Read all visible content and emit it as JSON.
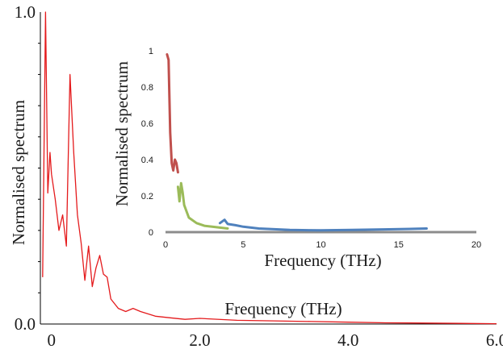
{
  "chart_data": [
    {
      "id": "main",
      "type": "line",
      "title": "",
      "xlabel": "Frequency (THz)",
      "ylabel": "Normalised spectrum",
      "xlim": [
        -0.15,
        6.0
      ],
      "ylim": [
        0,
        1.0
      ],
      "x_ticks": [
        0,
        2.0,
        4.0,
        6.0
      ],
      "x_tick_labels": [
        "0",
        "2.0",
        "4.0",
        "6.0"
      ],
      "y_tick_labels": [
        {
          "value": 0.0,
          "label": "0.0"
        },
        {
          "value": 1.0,
          "label": "1.0"
        }
      ],
      "grid": false,
      "series": [
        {
          "color": "#e41a1c",
          "x": [
            -0.12,
            -0.08,
            -0.05,
            -0.02,
            0.0,
            0.05,
            0.1,
            0.15,
            0.2,
            0.25,
            0.3,
            0.35,
            0.4,
            0.45,
            0.5,
            0.55,
            0.6,
            0.65,
            0.7,
            0.75,
            0.8,
            0.9,
            1.0,
            1.1,
            1.2,
            1.4,
            1.6,
            1.8,
            2.0,
            2.5,
            3.0,
            3.5,
            4.0,
            4.5,
            5.0,
            5.5,
            6.0
          ],
          "y": [
            0.15,
            1.0,
            0.42,
            0.55,
            0.48,
            0.4,
            0.3,
            0.35,
            0.25,
            0.8,
            0.55,
            0.35,
            0.26,
            0.14,
            0.25,
            0.12,
            0.18,
            0.22,
            0.16,
            0.15,
            0.08,
            0.05,
            0.04,
            0.05,
            0.04,
            0.025,
            0.02,
            0.015,
            0.018,
            0.012,
            0.01,
            0.008,
            0.006,
            0.004,
            0.003,
            0.002,
            0.001
          ]
        }
      ]
    },
    {
      "id": "inset",
      "type": "line",
      "title": "",
      "xlabel": "Frequency (THz)",
      "ylabel": "Normalised spectrum",
      "xlim": [
        0,
        20
      ],
      "ylim": [
        0,
        1
      ],
      "x_ticks": [
        0,
        5,
        10,
        15,
        20
      ],
      "x_tick_labels": [
        "0",
        "5",
        "10",
        "15",
        "20"
      ],
      "y_ticks": [
        0,
        0.2,
        0.4,
        0.6,
        0.8,
        1
      ],
      "y_tick_labels": [
        "0",
        "0.2",
        "0.4",
        "0.6",
        "0.8",
        "1"
      ],
      "grid": false,
      "series": [
        {
          "color": "#c0504d",
          "x": [
            0.1,
            0.2,
            0.3,
            0.4,
            0.5,
            0.6,
            0.7,
            0.8
          ],
          "y": [
            0.98,
            0.95,
            0.55,
            0.38,
            0.34,
            0.4,
            0.38,
            0.33
          ]
        },
        {
          "color": "#9bbb59",
          "x": [
            0.8,
            0.9,
            1.0,
            1.1,
            1.2,
            1.5,
            2.0,
            2.5,
            3.0,
            3.5,
            4.0
          ],
          "y": [
            0.25,
            0.17,
            0.27,
            0.22,
            0.15,
            0.08,
            0.05,
            0.035,
            0.03,
            0.025,
            0.02
          ]
        },
        {
          "color": "#4f81bd",
          "x": [
            3.5,
            3.8,
            4.0,
            4.5,
            5.0,
            6.0,
            8.0,
            10.0,
            12.0,
            14.0,
            16.0,
            16.8
          ],
          "y": [
            0.05,
            0.068,
            0.045,
            0.038,
            0.03,
            0.02,
            0.012,
            0.01,
            0.012,
            0.015,
            0.018,
            0.02
          ]
        }
      ]
    }
  ]
}
